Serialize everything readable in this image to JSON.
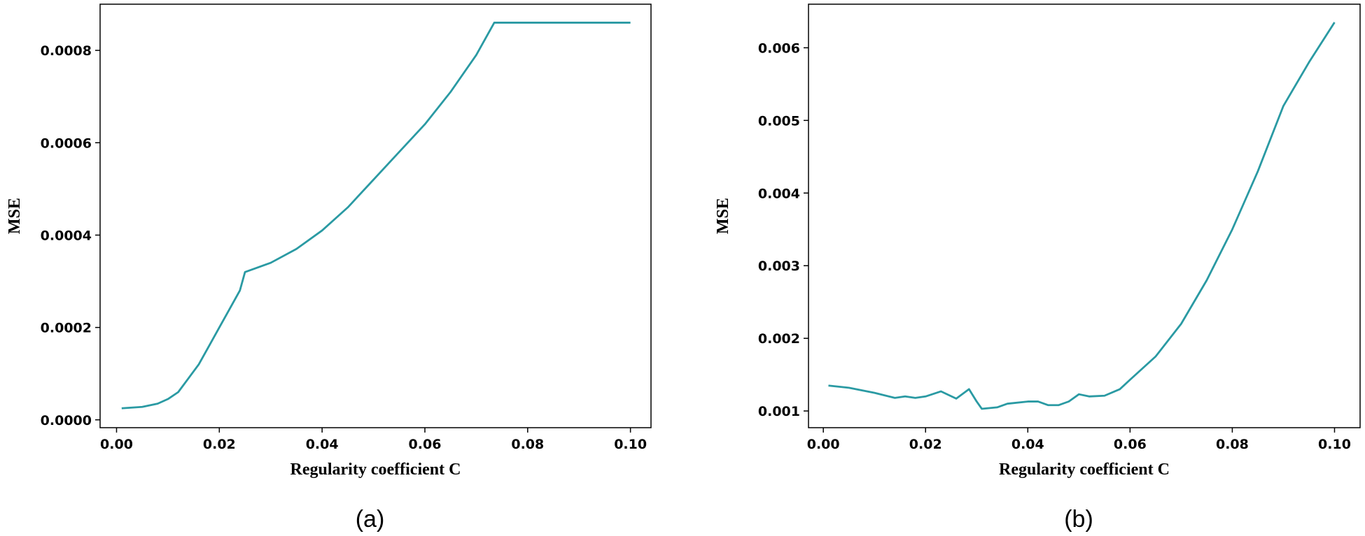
{
  "chart_data": [
    {
      "type": "line",
      "caption": "(a)",
      "xlabel": "Regularity coefficient C",
      "ylabel": "MSE",
      "color": "#2a9aa3",
      "x": [
        0.001,
        0.005,
        0.008,
        0.01,
        0.012,
        0.014,
        0.016,
        0.018,
        0.02,
        0.022,
        0.024,
        0.025,
        0.03,
        0.035,
        0.04,
        0.045,
        0.05,
        0.055,
        0.06,
        0.065,
        0.07,
        0.0735,
        0.08,
        0.1
      ],
      "values": [
        2.5e-05,
        2.8e-05,
        3.5e-05,
        4.5e-05,
        6e-05,
        9e-05,
        0.00012,
        0.00016,
        0.0002,
        0.00024,
        0.00028,
        0.00032,
        0.00034,
        0.00037,
        0.00041,
        0.00046,
        0.00052,
        0.00058,
        0.00064,
        0.00071,
        0.00079,
        0.00086,
        0.00086,
        0.00086
      ],
      "xlim": [
        -0.0032,
        0.104
      ],
      "ylim": [
        -1.7e-05,
        0.0009
      ],
      "xticks": [
        {
          "value": 0,
          "label": "0.00"
        },
        0.02,
        0.04,
        0.06,
        0.08,
        {
          "value": 0.1,
          "label": "0.10"
        }
      ],
      "yticks": [
        {
          "value": 0,
          "label": "0.0000"
        },
        {
          "value": 0.0002,
          "label": "0.0002"
        },
        {
          "value": 0.0004,
          "label": "0.0004"
        },
        {
          "value": 0.0006,
          "label": "0.0006"
        },
        {
          "value": 0.0008,
          "label": "0.0008"
        }
      ]
    },
    {
      "type": "line",
      "caption": "(b)",
      "xlabel": "Regularity coefficient C",
      "ylabel": "MSE",
      "color": "#2a9aa3",
      "x": [
        0.001,
        0.005,
        0.01,
        0.014,
        0.016,
        0.018,
        0.02,
        0.023,
        0.026,
        0.0285,
        0.03,
        0.031,
        0.034,
        0.036,
        0.04,
        0.042,
        0.044,
        0.046,
        0.048,
        0.05,
        0.052,
        0.055,
        0.058,
        0.06,
        0.065,
        0.07,
        0.075,
        0.08,
        0.085,
        0.09,
        0.095,
        0.1
      ],
      "values": [
        0.00135,
        0.00132,
        0.00125,
        0.00118,
        0.0012,
        0.00118,
        0.0012,
        0.00127,
        0.00117,
        0.0013,
        0.00113,
        0.00103,
        0.00105,
        0.0011,
        0.00113,
        0.00113,
        0.00108,
        0.00108,
        0.00113,
        0.00123,
        0.0012,
        0.00121,
        0.0013,
        0.00143,
        0.00175,
        0.0022,
        0.0028,
        0.0035,
        0.0043,
        0.0052,
        0.0058,
        0.00635
      ],
      "xlim": [
        -0.0029,
        0.105
      ],
      "ylim": [
        0.00077,
        0.0066
      ],
      "xticks": [
        {
          "value": 0,
          "label": "0.00"
        },
        0.02,
        0.04,
        0.06,
        0.08,
        {
          "value": 0.1,
          "label": "0.10"
        }
      ],
      "yticks": [
        0.001,
        0.002,
        0.003,
        0.004,
        0.005,
        0.006
      ]
    }
  ]
}
